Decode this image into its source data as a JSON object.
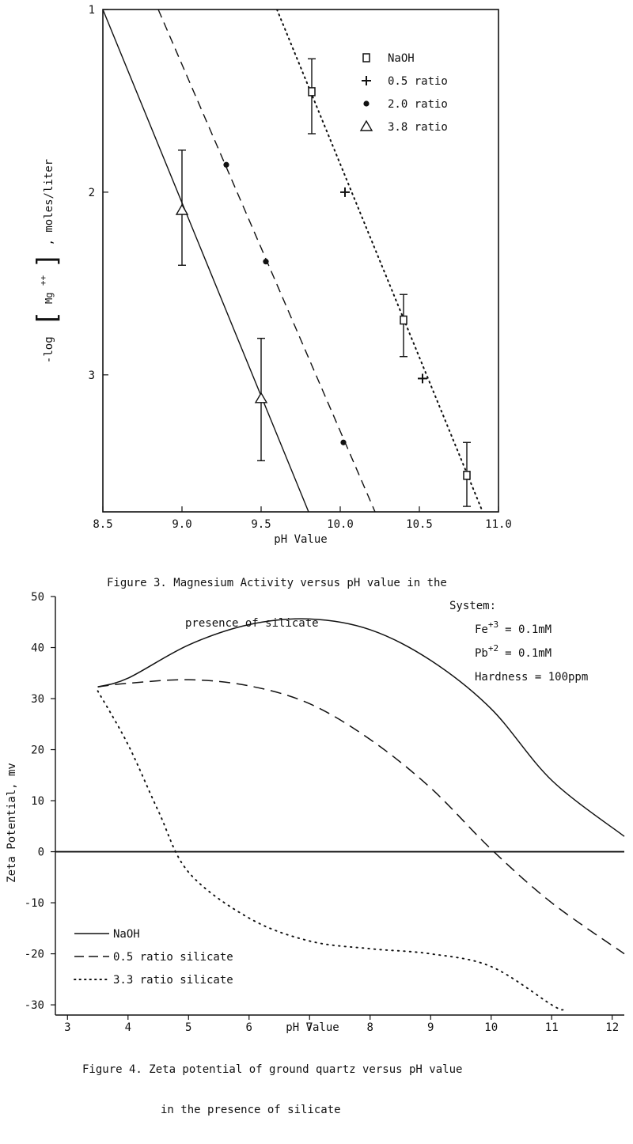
{
  "figures": [
    {
      "caption_lines": [
        "Figure 3. Magnesium Activity versus pH value in the",
        "presence of silicate"
      ]
    },
    {
      "caption_lines": [
        "Figure 4. Zeta potential of ground quartz versus pH value",
        "in the presence of silicate"
      ],
      "system_box": {
        "title": "System:",
        "fe_label": "Fe",
        "fe_sup": "+3",
        "fe_value": "= 0.1mM",
        "pb_label": "Pb",
        "pb_sup": "+2",
        "pb_value": "= 0.1mM",
        "hardness": "Hardness = 100ppm"
      }
    }
  ],
  "chart_data": [
    {
      "type": "scatter",
      "title": "",
      "xlabel": "pH Value",
      "ylabel_prefix": "-log",
      "ylabel_species": "Mg",
      "ylabel_charge": "++",
      "ylabel_suffix": ", moles/liter",
      "xlim": [
        8.5,
        11.0
      ],
      "ylim": [
        1.0,
        3.75
      ],
      "y_inverted": true,
      "xticks": [
        "8.5",
        "9.0",
        "9.5",
        "10.0",
        "10.5",
        "11.0"
      ],
      "yticks": [
        "1",
        "2",
        "3"
      ],
      "legend_position": "top-right",
      "series": [
        {
          "name": "NaOH",
          "marker": "square",
          "points": [
            [
              9.82,
              1.45
            ],
            [
              10.4,
              2.7
            ],
            [
              10.8,
              3.55
            ]
          ],
          "error_bars": [
            [
              9.82,
              1.27,
              1.68
            ],
            [
              10.4,
              2.56,
              2.9
            ],
            [
              10.8,
              3.37,
              3.72
            ]
          ]
        },
        {
          "name": "0.5 ratio",
          "marker": "plus",
          "points": [
            [
              10.03,
              2.0
            ],
            [
              10.52,
              3.02
            ]
          ]
        },
        {
          "name": "2.0 ratio",
          "marker": "dot",
          "points": [
            [
              9.28,
              1.85
            ],
            [
              9.53,
              2.38
            ],
            [
              10.02,
              3.37
            ]
          ]
        },
        {
          "name": "3.8 ratio",
          "marker": "triangle",
          "points": [
            [
              9.0,
              2.1
            ],
            [
              9.5,
              3.13
            ]
          ],
          "error_bars": [
            [
              9.0,
              1.77,
              2.4
            ],
            [
              9.5,
              2.8,
              3.47
            ]
          ]
        }
      ],
      "fit_lines": [
        {
          "style": "dotted",
          "points": [
            [
              9.6,
              1.0
            ],
            [
              10.9,
              3.75
            ]
          ]
        },
        {
          "style": "dashed",
          "points": [
            [
              8.85,
              1.0
            ],
            [
              10.22,
              3.75
            ]
          ]
        },
        {
          "style": "solid",
          "points": [
            [
              8.5,
              1.0
            ],
            [
              9.8,
              3.75
            ]
          ]
        }
      ]
    },
    {
      "type": "line",
      "title": "",
      "xlabel": "pH Value",
      "ylabel": "Zeta Potential, mv",
      "xlim": [
        2.8,
        12.2
      ],
      "ylim": [
        -32,
        50
      ],
      "xticks": [
        "3",
        "4",
        "5",
        "6",
        "7",
        "8",
        "9",
        "10",
        "11",
        "12"
      ],
      "yticks": [
        "50",
        "40",
        "30",
        "20",
        "10",
        "0",
        "-10",
        "-20",
        "-30"
      ],
      "zero_line": true,
      "legend_position": "bottom-left",
      "series": [
        {
          "name": "NaOH",
          "style": "solid",
          "points": [
            [
              3.5,
              32.3
            ],
            [
              4.0,
              34.0
            ],
            [
              5.0,
              40.5
            ],
            [
              6.0,
              44.5
            ],
            [
              7.0,
              45.6
            ],
            [
              8.0,
              43.5
            ],
            [
              9.0,
              37.5
            ],
            [
              10.0,
              28.0
            ],
            [
              11.0,
              14.0
            ],
            [
              12.2,
              3.0
            ]
          ]
        },
        {
          "name": "0.5 ratio silicate",
          "style": "dashed",
          "points": [
            [
              3.5,
              32.3
            ],
            [
              4.0,
              33.0
            ],
            [
              5.0,
              33.7
            ],
            [
              6.0,
              32.5
            ],
            [
              7.0,
              29.0
            ],
            [
              8.0,
              22.0
            ],
            [
              9.0,
              12.5
            ],
            [
              10.0,
              0.5
            ],
            [
              11.0,
              -10.0
            ],
            [
              12.2,
              -20.0
            ]
          ]
        },
        {
          "name": "3.3 ratio silicate",
          "style": "dotted",
          "points": [
            [
              3.5,
              31.5
            ],
            [
              4.0,
              21.0
            ],
            [
              4.5,
              8.0
            ],
            [
              5.0,
              -4.0
            ],
            [
              6.0,
              -13.0
            ],
            [
              7.0,
              -17.5
            ],
            [
              8.0,
              -19.0
            ],
            [
              9.0,
              -20.0
            ],
            [
              10.0,
              -22.5
            ],
            [
              11.0,
              -30.0
            ],
            [
              11.2,
              -31.0
            ]
          ]
        }
      ]
    }
  ]
}
